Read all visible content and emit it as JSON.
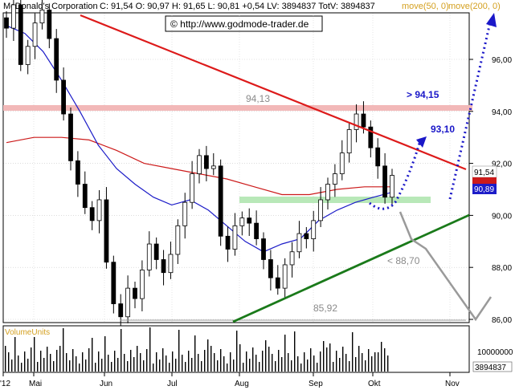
{
  "header": {
    "company": "McDonald's Corporation",
    "quote": "C: 91,54  O: 90,97  H: 91,65  L: 90,81  +0,54  LV: 3894837  TotV: 3894837",
    "ma50": "move(50, 0)",
    "ma200": "move(200, 0)"
  },
  "copyright": "© http://www.godmode-trader.de",
  "volume_label": "VolumeUnits",
  "colors": {
    "candle": "#000000",
    "ma50": "#1c1cc8",
    "ma200": "#cc1a1a",
    "downtrend": "#dd1a1a",
    "uptrend": "#1a7a1a",
    "resistance_band": "#f2b8b8",
    "support_band": "#b8e8b8",
    "projection": "#1a17c8",
    "scenario": "#9a9a9a",
    "header_ma": "#d4a020"
  },
  "annotations": {
    "resistance_label": "94,13",
    "low_label": "85,92",
    "target_up": "> 94,15",
    "target_mid": "93,10",
    "target_down": "< 88,70"
  },
  "price_badges": {
    "close": "91,54",
    "ma50": "90,89"
  },
  "volume_ticks": [
    "10000000",
    "3894837"
  ],
  "chart_data": {
    "type": "candlestick",
    "title": "McDonald's Corporation",
    "x_tick_labels": [
      "'12",
      "Mai",
      "Jun",
      "Jul",
      "Aug",
      "Sep",
      "Okt",
      "Nov"
    ],
    "y_tick_labels": [
      "86,00",
      "88,00",
      "90,00",
      "92,00",
      "94,00",
      "96,00"
    ],
    "ylim": [
      85.5,
      98.3
    ],
    "grid": true,
    "close_series_approx": [
      97.2,
      98.1,
      95.8,
      96.5,
      97.4,
      97.9,
      96.8,
      95.2,
      93.9,
      92.1,
      91.2,
      90.3,
      89.8,
      90.6,
      88.2,
      86.6,
      86.1,
      87.2,
      86.8,
      87.9,
      88.9,
      88.3,
      87.8,
      88.5,
      89.6,
      90.5,
      91.6,
      92.3,
      91.8,
      91.9,
      89.2,
      88.7,
      89.6,
      89.9,
      89.7,
      89.1,
      88.3,
      87.6,
      87.2,
      88.1,
      88.6,
      89.3,
      89.1,
      89.8,
      90.6,
      91.2,
      91.6,
      92.4,
      93.3,
      93.9,
      93.4,
      92.6,
      91.9,
      90.7,
      91.54
    ],
    "series": [
      {
        "name": "move(50, 0)",
        "values": [
          97.3,
          97.0,
          96.3,
          95.2,
          94.0,
          92.7,
          91.8,
          91.2,
          90.7,
          90.4,
          90.6,
          90.2,
          89.6,
          89.0,
          88.6,
          88.9,
          89.1,
          89.8,
          90.2,
          90.5,
          90.7,
          90.89
        ]
      },
      {
        "name": "move(200, 0)",
        "values": [
          92.8,
          93.0,
          93.0,
          92.9,
          92.5,
          92.0,
          91.8,
          91.6,
          91.4,
          91.1,
          90.8,
          90.8,
          91.0,
          91.1,
          91.1
        ]
      }
    ],
    "volume": {
      "ylabel": "VolumeUnits",
      "last": 3894837
    }
  }
}
